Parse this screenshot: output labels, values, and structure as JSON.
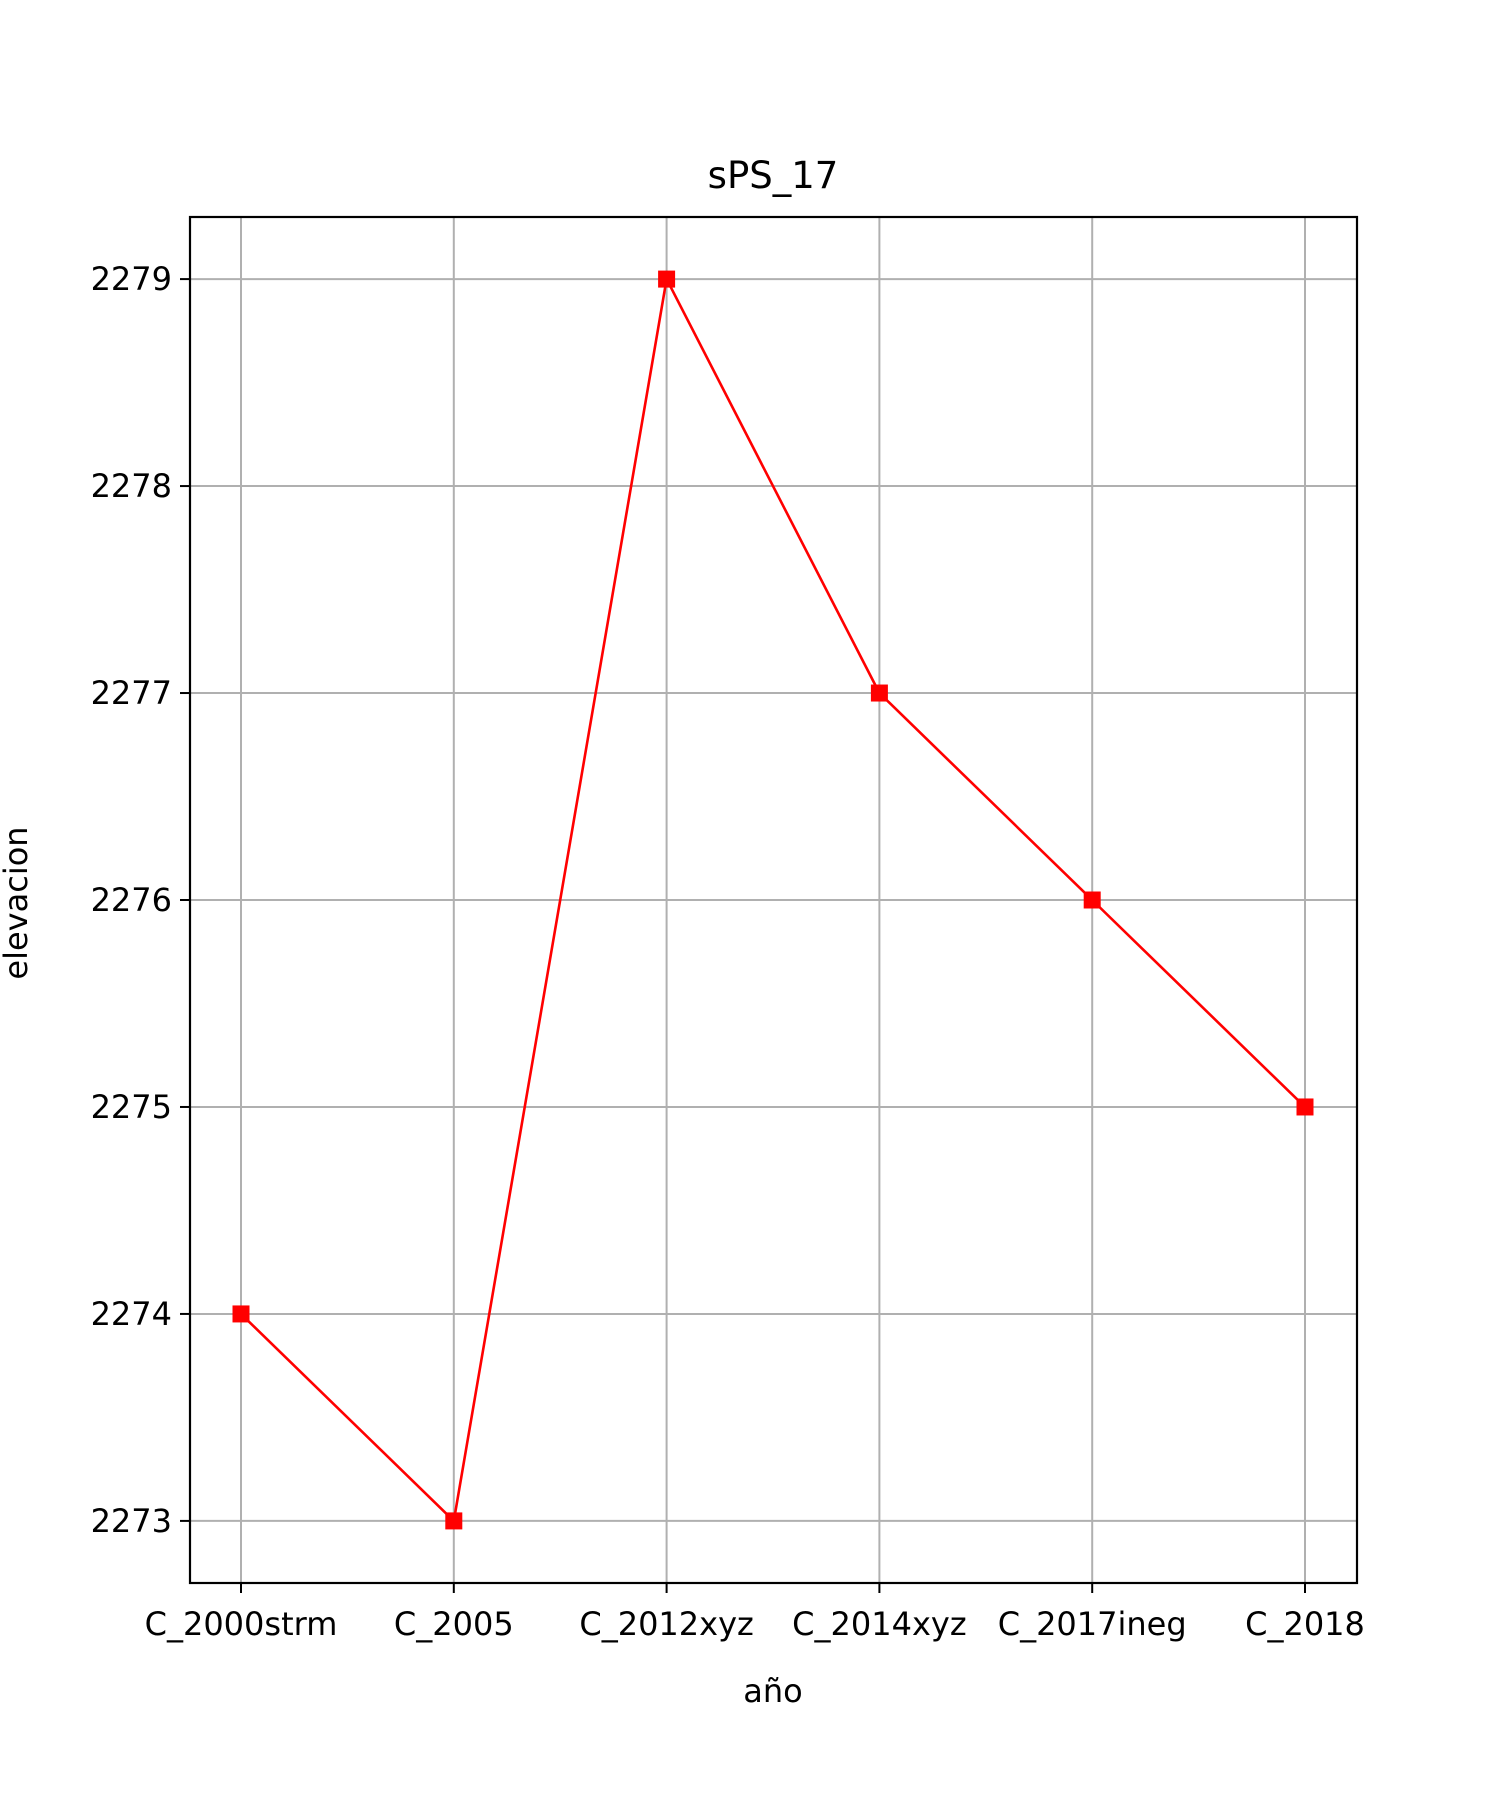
{
  "chart_data": {
    "type": "line",
    "title": "sPS_17",
    "xlabel": "año",
    "ylabel": "elevacion",
    "categories": [
      "C_2000strm",
      "C_2005",
      "C_2012xyz",
      "C_2014xyz",
      "C_2017ineg",
      "C_2018"
    ],
    "series": [
      {
        "values": [
          2274,
          2273,
          2279,
          2277,
          2276,
          2275
        ],
        "color": "#ff0000",
        "marker": "square"
      }
    ],
    "yticks": [
      2273,
      2274,
      2275,
      2276,
      2277,
      2278,
      2279
    ],
    "ylim": [
      2272.7,
      2279.3
    ],
    "grid": true,
    "legend": "none"
  }
}
